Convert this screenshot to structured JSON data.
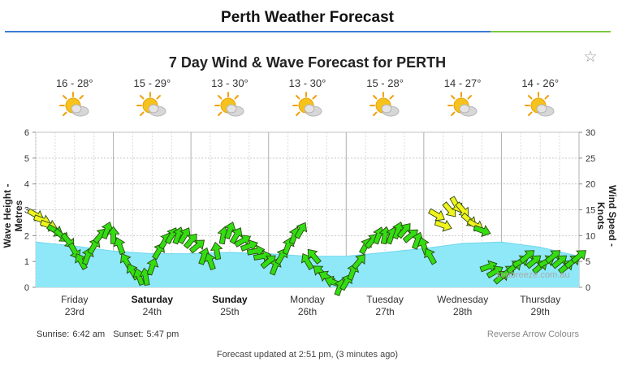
{
  "header": {
    "title": "Perth Weather Forecast"
  },
  "chart_title": "7 Day Wind & Wave Forecast for PERTH",
  "favorite_icon": "star-outline-icon",
  "days": [
    {
      "name": "Friday",
      "date": "23rd",
      "temp": "16 - 28°",
      "icon": "partly-cloudy-icon",
      "bold": false
    },
    {
      "name": "Saturday",
      "date": "24th",
      "temp": "15 - 29°",
      "icon": "partly-cloudy-icon",
      "bold": true
    },
    {
      "name": "Sunday",
      "date": "25th",
      "temp": "13 - 30°",
      "icon": "partly-cloudy-icon",
      "bold": true
    },
    {
      "name": "Monday",
      "date": "26th",
      "temp": "13 - 30°",
      "icon": "partly-cloudy-icon",
      "bold": false
    },
    {
      "name": "Tuesday",
      "date": "27th",
      "temp": "15 - 28°",
      "icon": "partly-cloudy-icon",
      "bold": false
    },
    {
      "name": "Wednesday",
      "date": "28th",
      "temp": "14 - 27°",
      "icon": "partly-cloudy-icon",
      "bold": false
    },
    {
      "name": "Thursday",
      "date": "29th",
      "temp": "14 - 26°",
      "icon": "partly-cloudy-icon",
      "bold": false
    }
  ],
  "chart_data": {
    "type": "area",
    "xlabel": "",
    "ylabel_left": "Wave Height - Metres",
    "ylabel_right": "Wind Speed - Knots",
    "ylim_left": [
      0,
      6
    ],
    "ylim_right": [
      0,
      30
    ],
    "left_ticks": [
      "0",
      "1",
      "2",
      "3",
      "4",
      "5",
      "6"
    ],
    "right_ticks": [
      "0",
      "5",
      "10",
      "15",
      "20",
      "25",
      "30"
    ],
    "grid": true,
    "x_unit": "hours from Friday 00:00",
    "x_range": [
      0,
      168
    ],
    "wave_height": {
      "name": "Wave Height",
      "color": "#8ee8f8",
      "x": [
        0,
        12,
        24,
        36,
        48,
        60,
        72,
        84,
        96,
        108,
        120,
        132,
        144,
        156,
        168
      ],
      "values": [
        1.75,
        1.6,
        1.4,
        1.3,
        1.3,
        1.35,
        1.3,
        1.2,
        1.2,
        1.35,
        1.5,
        1.7,
        1.75,
        1.55,
        1.2
      ]
    },
    "wind": {
      "name": "Wind Speed",
      "x": [
        0,
        2,
        4,
        6,
        8,
        10,
        12,
        14,
        16,
        18,
        20,
        22,
        24,
        26,
        28,
        30,
        32,
        34,
        36,
        38,
        40,
        42,
        44,
        46,
        48,
        50,
        52,
        54,
        56,
        58,
        60,
        62,
        64,
        66,
        68,
        70,
        72,
        74,
        76,
        78,
        80,
        82,
        84,
        86,
        88,
        90,
        92,
        94,
        96,
        98,
        100,
        102,
        104,
        106,
        108,
        110,
        112,
        114,
        116,
        118,
        120,
        122,
        124,
        126,
        128,
        130,
        132,
        134,
        136,
        138,
        140,
        142,
        144,
        146,
        148,
        150,
        152,
        154,
        156,
        158,
        160,
        162,
        164,
        166,
        168
      ],
      "speed_knots": [
        14,
        13,
        12,
        11,
        10,
        9,
        7,
        5,
        6,
        8,
        10,
        11,
        10,
        8,
        5,
        3,
        2,
        2,
        4,
        7,
        9,
        10,
        10,
        10,
        9,
        8,
        6,
        5,
        7,
        10,
        11,
        10,
        9,
        8,
        7,
        6,
        5,
        4,
        6,
        8,
        10,
        11,
        5,
        6,
        3,
        2,
        1,
        0,
        1,
        3,
        5,
        8,
        9,
        10,
        10,
        10,
        11,
        11,
        10,
        9,
        8,
        6,
        14,
        12,
        15,
        16,
        15,
        13,
        12,
        11,
        4,
        3,
        2,
        3,
        4,
        5,
        6,
        5,
        4,
        5,
        6,
        5,
        4,
        5,
        6
      ],
      "direction_deg": [
        300,
        290,
        290,
        300,
        310,
        320,
        330,
        150,
        200,
        210,
        220,
        200,
        180,
        160,
        150,
        150,
        160,
        170,
        200,
        210,
        210,
        210,
        200,
        210,
        220,
        230,
        200,
        160,
        170,
        190,
        200,
        210,
        240,
        250,
        260,
        260,
        230,
        200,
        210,
        200,
        200,
        210,
        150,
        140,
        130,
        120,
        110,
        200,
        210,
        200,
        220,
        210,
        220,
        200,
        190,
        200,
        200,
        220,
        230,
        200,
        160,
        150,
        300,
        290,
        320,
        330,
        320,
        310,
        300,
        290,
        250,
        240,
        230,
        230,
        230,
        240,
        230,
        230,
        230,
        240,
        230,
        230,
        230,
        230,
        230
      ],
      "color_low": "#33dd11",
      "color_high": "#f2f21c"
    }
  },
  "footer": {
    "sunrise_label": "Sunrise:",
    "sunrise": "6:42 am",
    "sunset_label": "Sunset:",
    "sunset": "5:47 pm",
    "reverse_arrows": "Reverse Arrow Colours",
    "updated": "Forecast updated at 2:51 pm, (3 minutes ago)",
    "watermark": "seabreeze.com.au"
  }
}
